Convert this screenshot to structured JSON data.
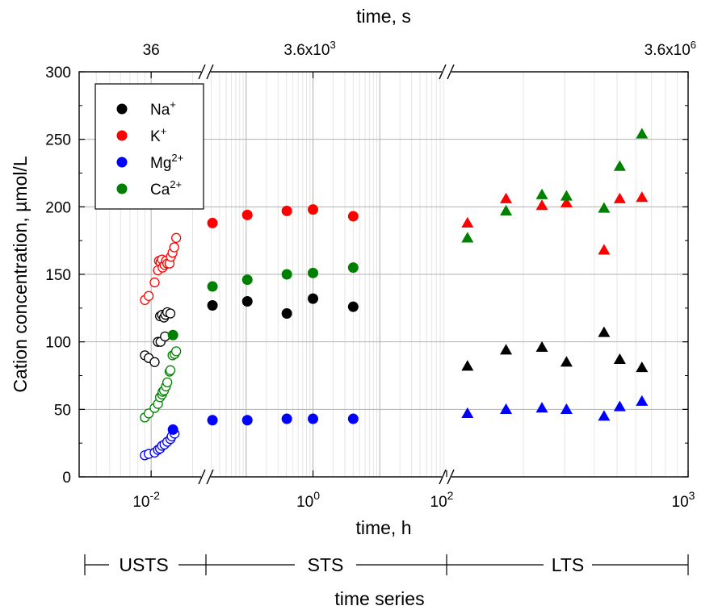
{
  "chart_data": {
    "type": "scatter",
    "ylabel": "Cation concentration, µmol/L",
    "xlabel_bottom": "time, h",
    "xlabel_top": "time, s",
    "xlabel_series": "time series",
    "ylim": [
      0,
      300
    ],
    "y_ticks": [
      "0",
      "50",
      "100",
      "150",
      "200",
      "250",
      "300"
    ],
    "segments": [
      {
        "name": "USTS",
        "scale": "log",
        "xlim": [
          0.003,
          0.025
        ]
      },
      {
        "name": "STS",
        "scale": "log",
        "xlim": [
          0.025,
          100
        ]
      },
      {
        "name": "LTS",
        "scale": "log",
        "xlim": [
          100,
          1000
        ]
      }
    ],
    "x_ticks_bottom": [
      {
        "value": 0.01,
        "mant": "10",
        "exp": "-2"
      },
      {
        "value": 1,
        "mant": "10",
        "exp": "0"
      },
      {
        "value": 100,
        "mant": "10",
        "exp": "2"
      },
      {
        "value": 1000,
        "mant": "10",
        "exp": "3"
      }
    ],
    "x_ticks_top": [
      {
        "value": 0.01,
        "label": "36",
        "sup": ""
      },
      {
        "value": 1,
        "label": "3.6x10",
        "sup": "3"
      },
      {
        "value": 1000,
        "label": "3.6x10",
        "sup": "6"
      }
    ],
    "legend": {
      "placement": "top-left",
      "entries": [
        {
          "base": "Na",
          "sup": "+",
          "color": "#000000"
        },
        {
          "base": "K",
          "sup": "+",
          "color": "#ff0000"
        },
        {
          "base": "Mg",
          "sup": "2+",
          "color": "#0000ff"
        },
        {
          "base": "Ca",
          "sup": "2+",
          "color": "#008000"
        }
      ]
    },
    "series": [
      {
        "color": "#000000",
        "usts_open": [
          [
            0.009,
            90
          ],
          [
            0.0096,
            88
          ],
          [
            0.0106,
            85
          ],
          [
            0.0112,
            100
          ],
          [
            0.0117,
            100
          ],
          [
            0.0116,
            119
          ],
          [
            0.012,
            120
          ],
          [
            0.0124,
            118
          ],
          [
            0.0127,
            120
          ],
          [
            0.0126,
            104
          ],
          [
            0.0131,
            122
          ],
          [
            0.0138,
            121
          ]
        ],
        "sts_filled": [
          [
            0.0313,
            127
          ],
          [
            0.104,
            130
          ],
          [
            0.406,
            121
          ],
          [
            1.0,
            132
          ],
          [
            4.0,
            126
          ]
        ],
        "lts_triangle": [
          [
            116,
            82
          ],
          [
            169,
            94
          ],
          [
            240,
            96
          ],
          [
            305,
            85
          ],
          [
            440,
            107
          ],
          [
            513,
            87
          ],
          [
            637,
            81
          ]
        ]
      },
      {
        "color": "#ff0000",
        "usts_open": [
          [
            0.009,
            131
          ],
          [
            0.0096,
            134
          ],
          [
            0.0106,
            144
          ],
          [
            0.0112,
            153
          ],
          [
            0.0114,
            160
          ],
          [
            0.0117,
            159
          ],
          [
            0.012,
            161
          ],
          [
            0.0121,
            155
          ],
          [
            0.0125,
            157
          ],
          [
            0.0128,
            160
          ],
          [
            0.0131,
            158
          ],
          [
            0.0136,
            158
          ],
          [
            0.0139,
            163
          ],
          [
            0.0143,
            166
          ],
          [
            0.0147,
            170
          ],
          [
            0.0152,
            177
          ]
        ],
        "sts_filled": [
          [
            0.0313,
            188
          ],
          [
            0.104,
            194
          ],
          [
            0.406,
            197
          ],
          [
            1.0,
            198
          ],
          [
            4.0,
            193
          ]
        ],
        "lts_triangle": [
          [
            116,
            188
          ],
          [
            169,
            206
          ],
          [
            240,
            201
          ],
          [
            305,
            203
          ],
          [
            440,
            168
          ],
          [
            513,
            206
          ],
          [
            637,
            207
          ]
        ]
      },
      {
        "color": "#0000ff",
        "usts_open": [
          [
            0.009,
            16
          ],
          [
            0.0096,
            17
          ],
          [
            0.0106,
            18
          ],
          [
            0.0112,
            20
          ],
          [
            0.0116,
            21
          ],
          [
            0.012,
            23
          ],
          [
            0.0125,
            24
          ],
          [
            0.0131,
            26
          ],
          [
            0.0138,
            28
          ],
          [
            0.0141,
            30
          ],
          [
            0.0148,
            32
          ]
        ],
        "sts_filled": [
          [
            0.0144,
            35
          ],
          [
            0.0313,
            42
          ],
          [
            0.104,
            42
          ],
          [
            0.406,
            43
          ],
          [
            1.0,
            43
          ],
          [
            4.0,
            43
          ]
        ],
        "lts_triangle": [
          [
            116,
            47
          ],
          [
            169,
            50
          ],
          [
            240,
            51
          ],
          [
            305,
            50
          ],
          [
            440,
            45
          ],
          [
            513,
            52
          ],
          [
            637,
            56
          ]
        ]
      },
      {
        "color": "#008000",
        "usts_open": [
          [
            0.009,
            44
          ],
          [
            0.0096,
            47
          ],
          [
            0.0106,
            51
          ],
          [
            0.0112,
            54
          ],
          [
            0.0116,
            59
          ],
          [
            0.012,
            61
          ],
          [
            0.0121,
            63
          ],
          [
            0.0124,
            64
          ],
          [
            0.0128,
            67
          ],
          [
            0.0131,
            70
          ],
          [
            0.0136,
            78
          ],
          [
            0.0138,
            79
          ],
          [
            0.0143,
            90
          ],
          [
            0.0148,
            91
          ],
          [
            0.0152,
            93
          ]
        ],
        "sts_filled": [
          [
            0.0144,
            105
          ],
          [
            0.0313,
            141
          ],
          [
            0.104,
            146
          ],
          [
            0.406,
            150
          ],
          [
            1.0,
            151
          ],
          [
            4.0,
            155
          ]
        ],
        "lts_triangle": [
          [
            116,
            177
          ],
          [
            169,
            197
          ],
          [
            240,
            209
          ],
          [
            305,
            208
          ],
          [
            440,
            199
          ],
          [
            513,
            230
          ],
          [
            637,
            254
          ]
        ]
      }
    ]
  }
}
